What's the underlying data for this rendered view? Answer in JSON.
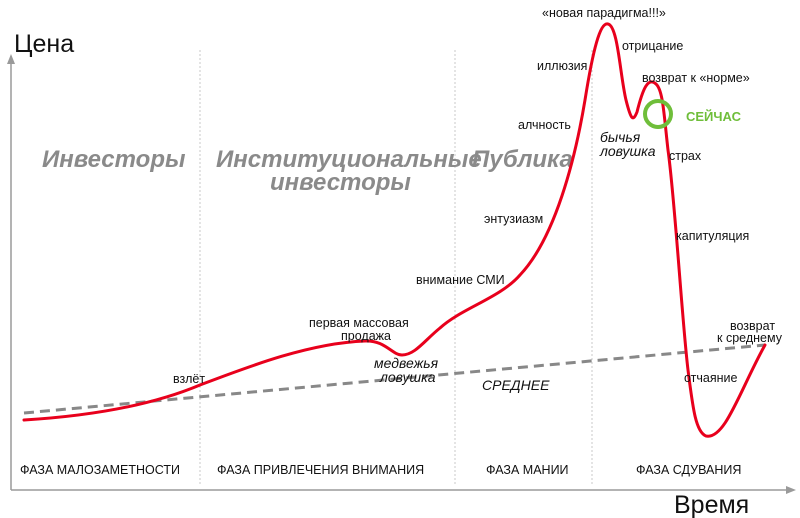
{
  "axes": {
    "y_label": "Цена",
    "x_label": "Время"
  },
  "groups": [
    "Инвесторы",
    "Институциональные",
    "инвесторы",
    "Публика"
  ],
  "phases": [
    "ФАЗА МАЛОЗАМЕТНОСТИ",
    "ФАЗА ПРИВЛЕЧЕНИЯ ВНИМАНИЯ",
    "ФАЗА МАНИИ",
    "ФАЗА СДУВАНИЯ"
  ],
  "annotations": {
    "takeoff": "взлёт",
    "first_sale_1": "первая массовая",
    "first_sale_2": "продажа",
    "bear_trap_1": "медвежья",
    "bear_trap_2": "ловушка",
    "average": "СРЕДНЕЕ",
    "media": "внимание СМИ",
    "enthusiasm": "энтузиазм",
    "greed": "алчность",
    "illusion": "иллюзия",
    "paradigm": "«новая парадигма!!!»",
    "denial": "отрицание",
    "return_normal": "возврат к «норме»",
    "now": "СЕЙЧАС",
    "bull_trap_1": "бычья",
    "bull_trap_2": "ловушка",
    "fear": "страх",
    "capitulation": "капитуляция",
    "despair": "отчаяние",
    "return_mean_1": "возврат",
    "return_mean_2": "к среднему"
  },
  "colors": {
    "curve": "#e8001c",
    "average": "#888888",
    "now_marker": "#6fbe3a",
    "axis": "#999999",
    "divider": "#c8c8c8"
  }
}
